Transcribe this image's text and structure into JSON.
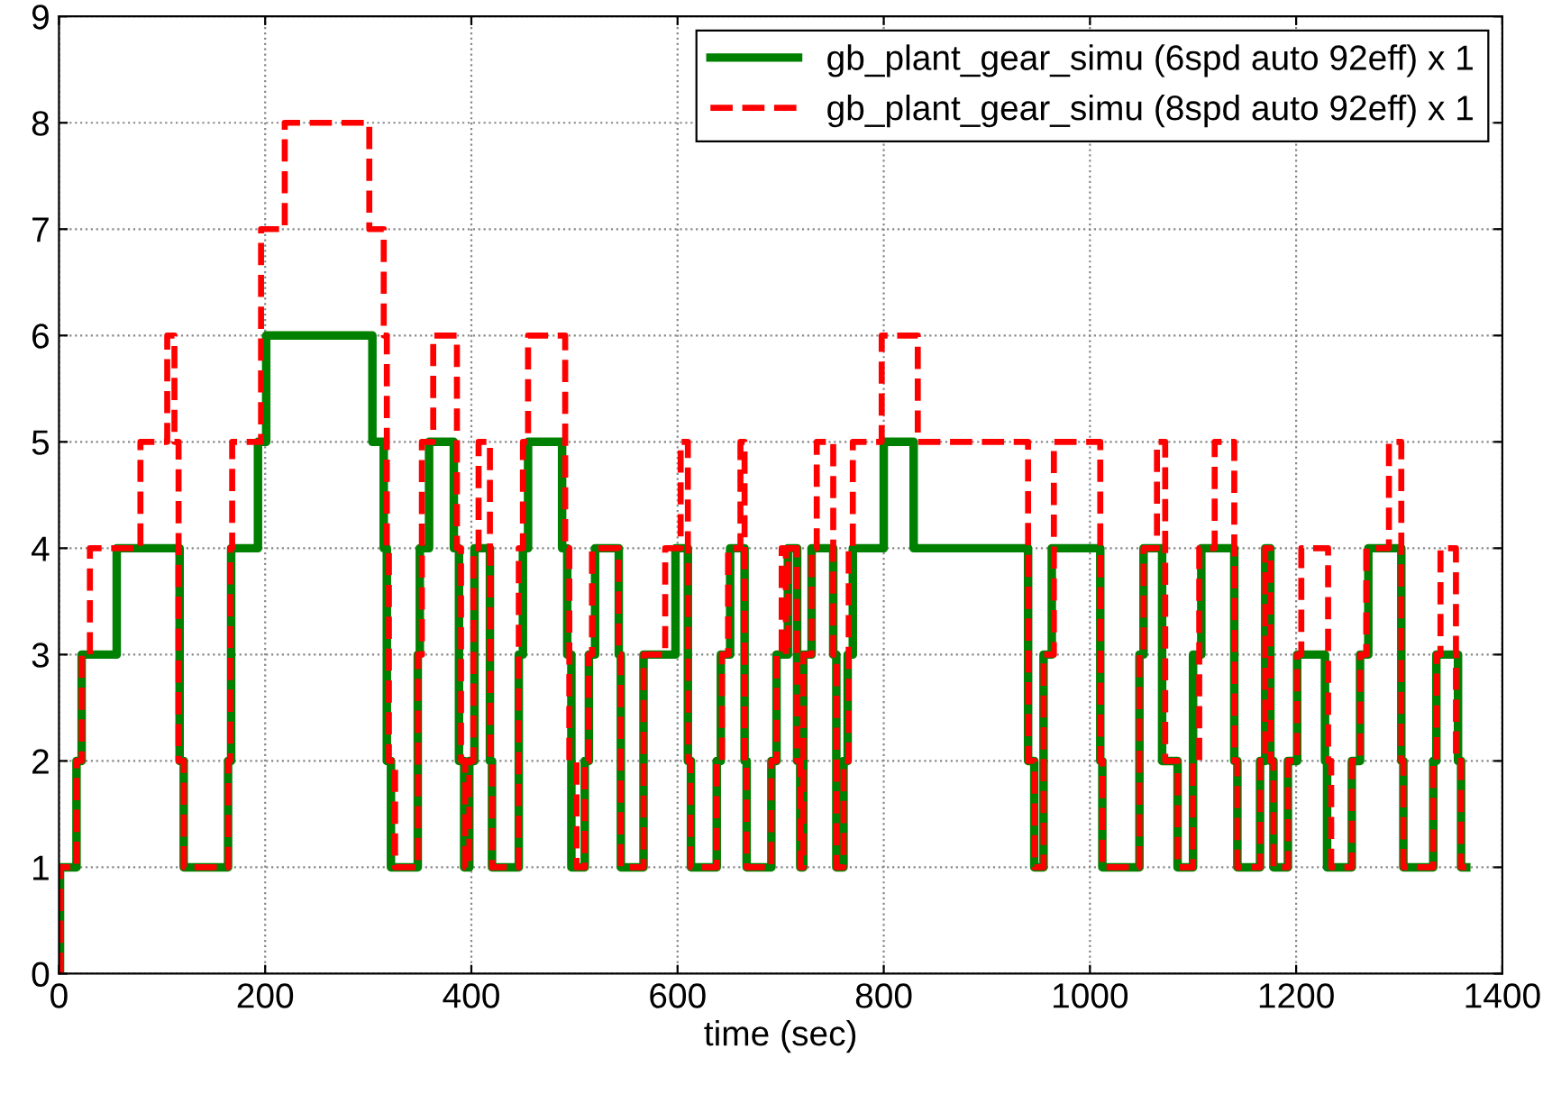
{
  "chart_data": {
    "type": "step",
    "xlabel": "time (sec)",
    "xlim": [
      0,
      1400
    ],
    "xticks": [
      0,
      200,
      400,
      600,
      800,
      1000,
      1200,
      1400
    ],
    "ylim": [
      0,
      9
    ],
    "yticks": [
      0,
      1,
      2,
      3,
      4,
      5,
      6,
      7,
      8,
      9
    ],
    "grid": true,
    "legend": "top right",
    "marker": "none",
    "series": [
      {
        "name": "gb_plant_gear_simu (6spd auto 92eff) x 1",
        "color": "#008000",
        "line_style": "solid",
        "x": [
          0,
          1,
          17,
          22,
          56,
          117,
          121,
          164,
          167,
          193,
          201,
          304,
          315,
          318,
          322,
          348,
          350,
          359,
          383,
          388,
          393,
          398,
          403,
          418,
          420,
          446,
          450,
          455,
          488,
          493,
          497,
          510,
          514,
          520,
          543,
          545,
          567,
          598,
          610,
          613,
          638,
          642,
          651,
          665,
          667,
          691,
          696,
          707,
          716,
          719,
          722,
          730,
          751,
          754,
          761,
          765,
          770,
          800,
          829,
          940,
          946,
          955,
          963,
          1010,
          1012,
          1048,
          1052,
          1070,
          1085,
          1100,
          1108,
          1140,
          1143,
          1165,
          1170,
          1175,
          1178,
          1192,
          1201,
          1228,
          1230,
          1254,
          1262,
          1270,
          1302,
          1304,
          1333,
          1336,
          1357,
          1360,
          1365
        ],
        "values": [
          0,
          1,
          2,
          3,
          4,
          2,
          1,
          2,
          4,
          5,
          6,
          5,
          4,
          2,
          1,
          3,
          4,
          5,
          4,
          2,
          1,
          2,
          4,
          2,
          1,
          3,
          4,
          5,
          4,
          3,
          1,
          2,
          3,
          4,
          3,
          1,
          3,
          4,
          2,
          1,
          2,
          3,
          4,
          2,
          1,
          2,
          3,
          4,
          2,
          1,
          3,
          4,
          3,
          1,
          2,
          3,
          4,
          5,
          4,
          2,
          1,
          3,
          4,
          2,
          1,
          3,
          4,
          2,
          1,
          3,
          4,
          2,
          1,
          2,
          4,
          2,
          1,
          2,
          3,
          2,
          1,
          2,
          3,
          4,
          2,
          1,
          2,
          3,
          2,
          1,
          1
        ]
      },
      {
        "name": "gb_plant_gear_simu (8spd auto 92eff) x 1",
        "color": "#ff0000",
        "line_style": "dashed",
        "x": [
          0,
          1,
          17,
          22,
          30,
          79,
          105,
          112,
          116,
          121,
          164,
          166,
          168,
          196,
          219,
          301,
          315,
          318,
          320,
          326,
          348,
          352,
          363,
          386,
          390,
          394,
          398,
          402,
          407,
          418,
          420,
          446,
          450,
          455,
          491,
          495,
          502,
          510,
          514,
          517,
          543,
          545,
          567,
          588,
          603,
          610,
          613,
          638,
          643,
          649,
          661,
          665,
          667,
          691,
          696,
          701,
          705,
          707,
          716,
          719,
          722,
          730,
          735,
          751,
          754,
          761,
          766,
          770,
          798,
          833,
          940,
          946,
          955,
          965,
          1010,
          1012,
          1048,
          1052,
          1065,
          1073,
          1085,
          1100,
          1106,
          1121,
          1140,
          1143,
          1165,
          1170,
          1175,
          1178,
          1192,
          1201,
          1205,
          1231,
          1234,
          1254,
          1262,
          1268,
          1290,
          1302,
          1304,
          1333,
          1336,
          1340,
          1355,
          1360,
          1365
        ],
        "values": [
          0,
          1,
          2,
          3,
          4,
          5,
          6,
          5,
          2,
          1,
          2,
          4,
          5,
          7,
          8,
          7,
          6,
          4,
          2,
          1,
          3,
          5,
          6,
          4,
          2,
          1,
          2,
          4,
          5,
          2,
          1,
          4,
          5,
          6,
          4,
          2,
          1,
          2,
          3,
          4,
          3,
          1,
          3,
          4,
          5,
          2,
          1,
          2,
          3,
          4,
          5,
          2,
          1,
          2,
          3,
          4,
          3,
          4,
          2,
          1,
          3,
          4,
          5,
          3,
          1,
          2,
          4,
          5,
          6,
          5,
          2,
          1,
          3,
          5,
          2,
          1,
          3,
          4,
          5,
          2,
          1,
          2,
          4,
          5,
          2,
          1,
          2,
          4,
          2,
          1,
          2,
          3,
          4,
          2,
          1,
          2,
          3,
          4,
          5,
          2,
          1,
          2,
          3,
          4,
          2,
          1,
          1
        ]
      }
    ]
  }
}
